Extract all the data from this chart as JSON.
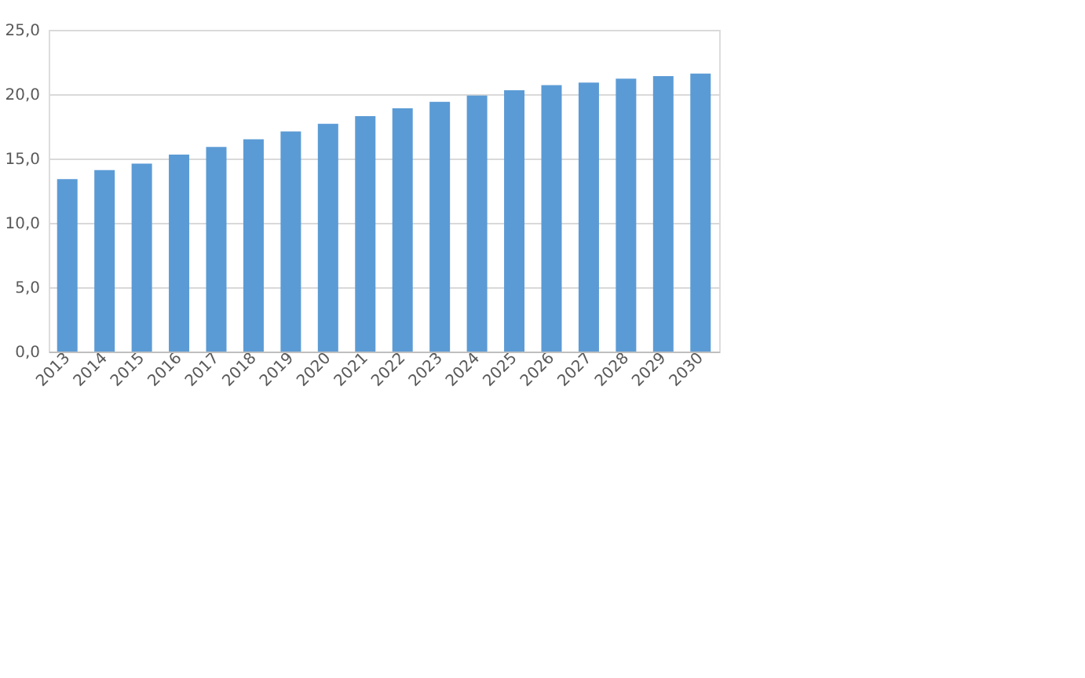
{
  "chart_data": {
    "type": "bar",
    "categories": [
      "2013",
      "2014",
      "2015",
      "2016",
      "2017",
      "2018",
      "2019",
      "2020",
      "2021",
      "2022",
      "2023",
      "2024",
      "2025",
      "2026",
      "2027",
      "2028",
      "2029",
      "2030"
    ],
    "values": [
      13.4,
      14.1,
      14.6,
      15.3,
      15.9,
      16.5,
      17.1,
      17.7,
      18.3,
      18.9,
      19.4,
      19.9,
      20.3,
      20.7,
      20.9,
      21.2,
      21.4,
      21.6
    ],
    "color": "#5b9bd5",
    "ylim": [
      0,
      25
    ],
    "yticks": [
      {
        "value": 0,
        "label": "0,0"
      },
      {
        "value": 5,
        "label": "5,0"
      },
      {
        "value": 10,
        "label": "10,0"
      },
      {
        "value": 15,
        "label": "15,0"
      },
      {
        "value": 20,
        "label": "20,0"
      },
      {
        "value": 25,
        "label": "25,0"
      }
    ],
    "grid": "y"
  }
}
